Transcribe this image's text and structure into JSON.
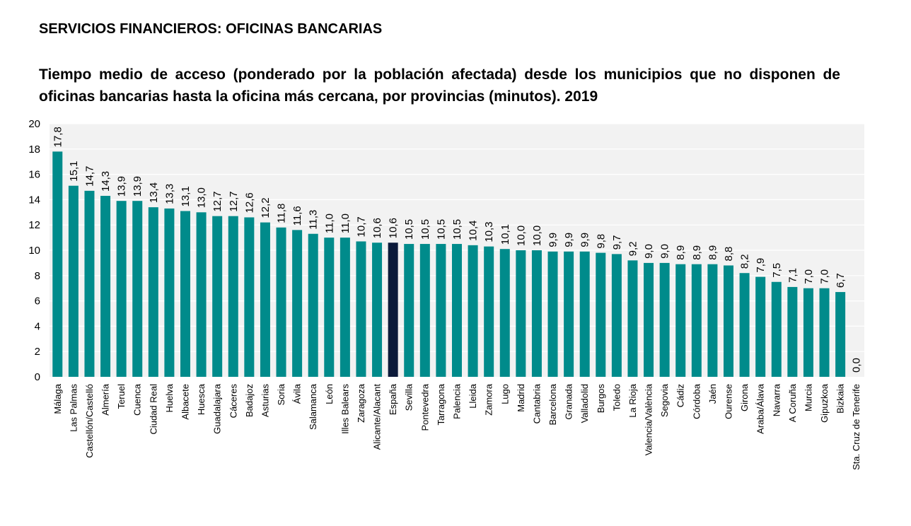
{
  "header": {
    "suptitle": "SERVICIOS FINANCIEROS: OFICINAS BANCARIAS"
  },
  "colors": {
    "bar": "#008b8b",
    "highlight": "#0c1a3a",
    "plot_background": "#f2f2f2",
    "grid": "#ffffff"
  },
  "chart_data": {
    "type": "bar",
    "title": "Tiempo medio de acceso (ponderado por la población afectada) desde los municipios que no disponen de oficinas bancarias hasta la oficina más cercana, por provincias (minutos). 2019",
    "xlabel": "",
    "ylabel": "",
    "ylim": [
      0,
      20
    ],
    "yticks": [
      0,
      2,
      4,
      6,
      8,
      10,
      12,
      14,
      16,
      18,
      20
    ],
    "grid": true,
    "highlight_category": "España",
    "categories": [
      "Málaga",
      "Las Palmas",
      "Castellón/Castelló",
      "Almería",
      "Teruel",
      "Cuenca",
      "Ciudad Real",
      "Huelva",
      "Albacete",
      "Huesca",
      "Guadalajara",
      "Cáceres",
      "Badajoz",
      "Asturias",
      "Soria",
      "Ávila",
      "Salamanca",
      "León",
      "Illes Balears",
      "Zaragoza",
      "Alicante/Alacant",
      "España",
      "Sevilla",
      "Pontevedra",
      "Tarragona",
      "Palencia",
      "Lleida",
      "Zamora",
      "Lugo",
      "Madrid",
      "Cantabria",
      "Barcelona",
      "Granada",
      "Valladolid",
      "Burgos",
      "Toledo",
      "La Rioja",
      "Valencia/València",
      "Segovia",
      "Cádiz",
      "Córdoba",
      "Jaén",
      "Ourense",
      "Girona",
      "Araba/Álava",
      "Navarra",
      "A Coruña",
      "Murcia",
      "Gipuzkoa",
      "Bizkaia",
      "Sta. Cruz de Tenerife"
    ],
    "values": [
      17.8,
      15.1,
      14.7,
      14.3,
      13.9,
      13.9,
      13.4,
      13.3,
      13.1,
      13.0,
      12.7,
      12.7,
      12.6,
      12.2,
      11.8,
      11.6,
      11.3,
      11.0,
      11.0,
      10.7,
      10.6,
      10.6,
      10.5,
      10.5,
      10.5,
      10.5,
      10.4,
      10.3,
      10.1,
      10.0,
      10.0,
      9.9,
      9.9,
      9.9,
      9.8,
      9.7,
      9.2,
      9.0,
      9.0,
      8.9,
      8.9,
      8.9,
      8.8,
      8.2,
      7.9,
      7.5,
      7.1,
      7.0,
      7.0,
      6.7,
      0.0
    ],
    "value_labels": [
      "17,8",
      "15,1",
      "14,7",
      "14,3",
      "13,9",
      "13,9",
      "13,4",
      "13,3",
      "13,1",
      "13,0",
      "12,7",
      "12,7",
      "12,6",
      "12,2",
      "11,8",
      "11,6",
      "11,3",
      "11,0",
      "11,0",
      "10,7",
      "10,6",
      "10,6",
      "10,5",
      "10,5",
      "10,5",
      "10,5",
      "10,4",
      "10,3",
      "10,1",
      "10,0",
      "10,0",
      "9,9",
      "9,9",
      "9,9",
      "9,8",
      "9,7",
      "9,2",
      "9,0",
      "9,0",
      "8,9",
      "8,9",
      "8,9",
      "8,8",
      "8,2",
      "7,9",
      "7,5",
      "7,1",
      "7,0",
      "7,0",
      "6,7",
      "0,0"
    ]
  }
}
